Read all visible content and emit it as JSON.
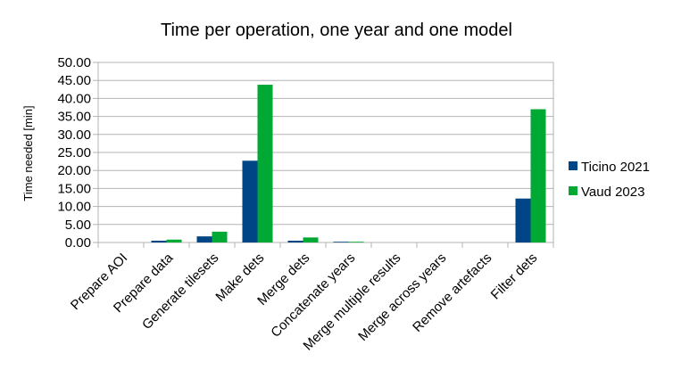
{
  "chart_data": {
    "type": "bar",
    "title": "Time per operation, one year and one model",
    "xlabel": "",
    "ylabel": "Time needed [min]",
    "ylim": [
      0,
      50
    ],
    "yticks": [
      "0.00",
      "5.00",
      "10.00",
      "15.00",
      "20.00",
      "25.00",
      "30.00",
      "35.00",
      "40.00",
      "45.00",
      "50.00"
    ],
    "categories": [
      "Prepare AOI",
      "Prepare data",
      "Generate tilesets",
      "Make dets",
      "Merge dets",
      "Concatenate years",
      "Merge multiple results",
      "Merge across years",
      "Remove artefacts",
      "Filter dets"
    ],
    "series": [
      {
        "name": "Ticino 2021",
        "color": "#004586",
        "values": [
          0.0,
          0.5,
          1.7,
          22.7,
          0.5,
          0.2,
          0.0,
          0.0,
          0.0,
          12.2
        ]
      },
      {
        "name": "Vaud 2023",
        "color": "#00A933",
        "values": [
          0.0,
          0.8,
          3.0,
          43.8,
          1.4,
          0.2,
          0.0,
          0.0,
          0.0,
          37.0
        ]
      }
    ],
    "grid": "horizontal",
    "legend_position": "right"
  }
}
